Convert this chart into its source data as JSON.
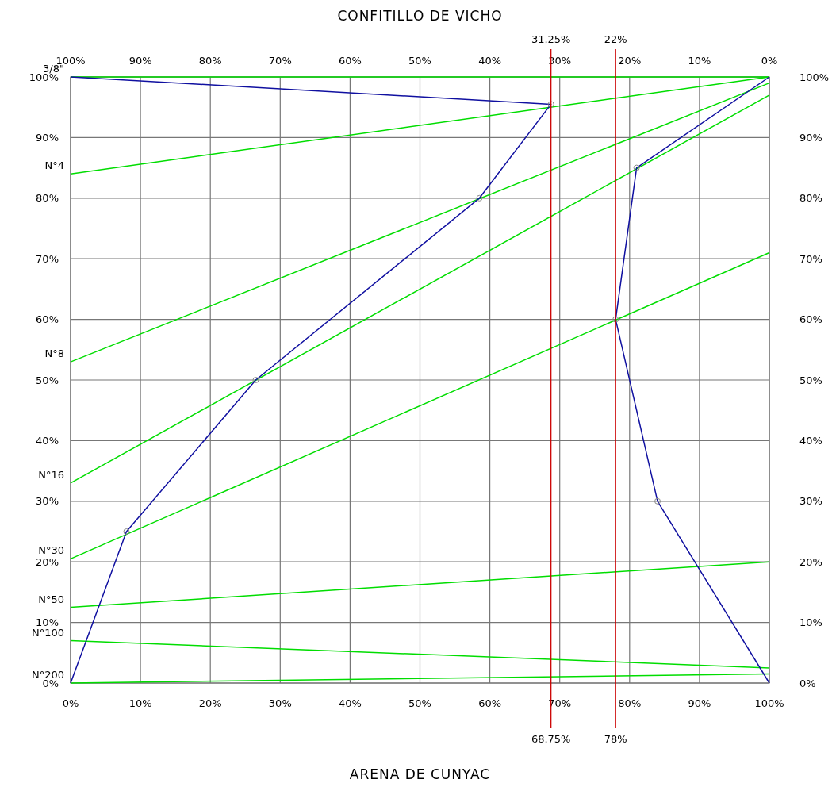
{
  "chart_data": {
    "type": "line",
    "title": "CONFITILLO DE VICHO",
    "xlabel": "ARENA DE CUNYAC",
    "xlim": [
      0,
      100
    ],
    "xticks": [
      {
        "value": 0,
        "label": "0%"
      },
      {
        "value": 10,
        "label": "10%"
      },
      {
        "value": 20,
        "label": "20%"
      },
      {
        "value": 30,
        "label": "30%"
      },
      {
        "value": 40,
        "label": "40%"
      },
      {
        "value": 50,
        "label": "50%"
      },
      {
        "value": 60,
        "label": "60%"
      },
      {
        "value": 70,
        "label": "70%"
      },
      {
        "value": 80,
        "label": "80%"
      },
      {
        "value": 90,
        "label": "90%"
      },
      {
        "value": 100,
        "label": "100%"
      }
    ],
    "x2lim": [
      100,
      0
    ],
    "x2ticks": [
      {
        "value": 100,
        "label": "100%"
      },
      {
        "value": 90,
        "label": "90%"
      },
      {
        "value": 80,
        "label": "80%"
      },
      {
        "value": 70,
        "label": "70%"
      },
      {
        "value": 60,
        "label": "60%"
      },
      {
        "value": 50,
        "label": "50%"
      },
      {
        "value": 40,
        "label": "40%"
      },
      {
        "value": 30,
        "label": "30%"
      },
      {
        "value": 20,
        "label": "20%"
      },
      {
        "value": 10,
        "label": "10%"
      },
      {
        "value": 0,
        "label": "0%"
      }
    ],
    "ylim": [
      0,
      100
    ],
    "yticks": [
      {
        "value": 0,
        "label": "0%"
      },
      {
        "value": 10,
        "label": "10%"
      },
      {
        "value": 20,
        "label": "20%"
      },
      {
        "value": 30,
        "label": "30%"
      },
      {
        "value": 40,
        "label": "40%"
      },
      {
        "value": 50,
        "label": "50%"
      },
      {
        "value": 60,
        "label": "60%"
      },
      {
        "value": 70,
        "label": "70%"
      },
      {
        "value": 80,
        "label": "80%"
      },
      {
        "value": 90,
        "label": "90%"
      },
      {
        "value": 100,
        "label": "100%"
      }
    ],
    "y2lim": [
      0,
      100
    ],
    "y2ticks": [
      {
        "value": 0,
        "label": "0%"
      },
      {
        "value": 10,
        "label": "10%"
      },
      {
        "value": 20,
        "label": "20%"
      },
      {
        "value": 30,
        "label": "30%"
      },
      {
        "value": 40,
        "label": "40%"
      },
      {
        "value": 50,
        "label": "50%"
      },
      {
        "value": 60,
        "label": "60%"
      },
      {
        "value": 70,
        "label": "70%"
      },
      {
        "value": 80,
        "label": "80%"
      },
      {
        "value": 90,
        "label": "90%"
      },
      {
        "value": 100,
        "label": "100%"
      }
    ],
    "grid": true,
    "legend": false,
    "series": [
      {
        "name": "3/8\"",
        "color": "#00dd00",
        "x": [
          0,
          100
        ],
        "values": [
          100,
          100
        ],
        "marker": "none"
      },
      {
        "name": "N°4",
        "color": "#00dd00",
        "x": [
          0,
          100
        ],
        "values": [
          84,
          100
        ],
        "marker": "none"
      },
      {
        "name": "N°8",
        "color": "#00dd00",
        "x": [
          0,
          100
        ],
        "values": [
          53,
          99
        ],
        "marker": "none"
      },
      {
        "name": "N°16",
        "color": "#00dd00",
        "x": [
          0,
          100
        ],
        "values": [
          33,
          97
        ],
        "marker": "none"
      },
      {
        "name": "N°30",
        "color": "#00dd00",
        "x": [
          0,
          100
        ],
        "values": [
          20.5,
          71
        ],
        "marker": "none"
      },
      {
        "name": "N°50",
        "color": "#00dd00",
        "x": [
          0,
          100
        ],
        "values": [
          12.5,
          20
        ],
        "marker": "none"
      },
      {
        "name": "N°100",
        "color": "#00dd00",
        "x": [
          0,
          100
        ],
        "values": [
          7,
          2.5
        ],
        "marker": "none"
      },
      {
        "name": "N°200",
        "color": "#00dd00",
        "x": [
          0,
          100
        ],
        "values": [
          0,
          1.5
        ],
        "marker": "none"
      },
      {
        "color": "#1010a0",
        "x": [
          0,
          68.75,
          58.5,
          26.5,
          8,
          0
        ],
        "values": [
          100,
          95.5,
          80,
          50,
          25,
          0
        ],
        "marker": "circle"
      },
      {
        "color": "#1010a0",
        "x": [
          100,
          81,
          78,
          84,
          100
        ],
        "values": [
          100,
          85,
          60,
          30,
          0
        ],
        "marker": "circle"
      }
    ],
    "ref_lines": [
      {
        "axis": "x",
        "value": 68.75,
        "label": "68.75%",
        "color": "#cc0000"
      },
      {
        "axis": "x",
        "value": 78,
        "label": "78%",
        "color": "#cc0000"
      }
    ],
    "annotations": [
      "31.25%",
      "22%"
    ]
  }
}
